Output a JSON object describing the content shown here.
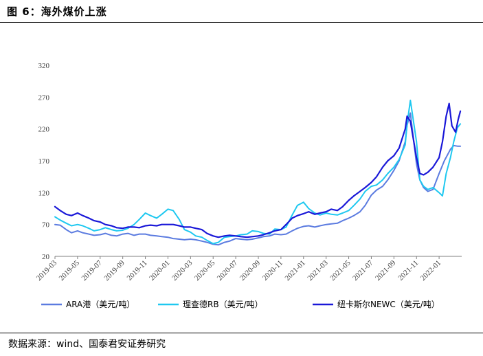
{
  "header": {
    "figure_title": "图 6：海外煤价上涨"
  },
  "footer": {
    "source": "数据来源：wind、国泰君安证券研究"
  },
  "chart_data": {
    "type": "line",
    "title": "图 6：海外煤价上涨",
    "xlabel": "",
    "ylabel": "",
    "ylim": [
      20,
      320
    ],
    "yticks": [
      20,
      70,
      120,
      170,
      220,
      270,
      320
    ],
    "xlim": [
      "2019-03",
      "2022-03"
    ],
    "xticks": [
      "2019-03",
      "2019-05",
      "2019-07",
      "2019-09",
      "2019-11",
      "2020-01",
      "2020-03",
      "2020-05",
      "2020-07",
      "2020-09",
      "2020-11",
      "2021-01",
      "2021-03",
      "2021-05",
      "2021-07",
      "2021-09",
      "2021-11",
      "2022-01"
    ],
    "grid": false,
    "legend_position": "bottom",
    "series": [
      {
        "name": "ARA港（美元/吨）",
        "color": "#5B7BE0",
        "points": [
          [
            "2019-03-01",
            70
          ],
          [
            "2019-03-15",
            69
          ],
          [
            "2019-04-01",
            62
          ],
          [
            "2019-04-15",
            57
          ],
          [
            "2019-05-01",
            60
          ],
          [
            "2019-05-15",
            57
          ],
          [
            "2019-06-01",
            55
          ],
          [
            "2019-06-15",
            53
          ],
          [
            "2019-07-01",
            54
          ],
          [
            "2019-07-15",
            56
          ],
          [
            "2019-08-01",
            53
          ],
          [
            "2019-08-15",
            52
          ],
          [
            "2019-09-01",
            55
          ],
          [
            "2019-09-15",
            56
          ],
          [
            "2019-10-01",
            53
          ],
          [
            "2019-10-15",
            55
          ],
          [
            "2019-11-01",
            55
          ],
          [
            "2019-11-15",
            53
          ],
          [
            "2019-12-01",
            52
          ],
          [
            "2019-12-15",
            51
          ],
          [
            "2020-01-01",
            50
          ],
          [
            "2020-01-15",
            48
          ],
          [
            "2020-02-01",
            47
          ],
          [
            "2020-02-15",
            46
          ],
          [
            "2020-03-01",
            47
          ],
          [
            "2020-03-15",
            46
          ],
          [
            "2020-04-01",
            44
          ],
          [
            "2020-04-15",
            42
          ],
          [
            "2020-05-01",
            39
          ],
          [
            "2020-05-15",
            38
          ],
          [
            "2020-06-01",
            42
          ],
          [
            "2020-06-15",
            44
          ],
          [
            "2020-07-01",
            48
          ],
          [
            "2020-07-15",
            47
          ],
          [
            "2020-08-01",
            46
          ],
          [
            "2020-08-15",
            47
          ],
          [
            "2020-09-01",
            49
          ],
          [
            "2020-09-15",
            51
          ],
          [
            "2020-10-01",
            52
          ],
          [
            "2020-10-15",
            55
          ],
          [
            "2020-11-01",
            54
          ],
          [
            "2020-11-15",
            55
          ],
          [
            "2020-12-01",
            60
          ],
          [
            "2020-12-15",
            64
          ],
          [
            "2021-01-01",
            67
          ],
          [
            "2021-01-15",
            68
          ],
          [
            "2021-02-01",
            66
          ],
          [
            "2021-02-15",
            68
          ],
          [
            "2021-03-01",
            70
          ],
          [
            "2021-03-15",
            71
          ],
          [
            "2021-04-01",
            72
          ],
          [
            "2021-04-15",
            76
          ],
          [
            "2021-05-01",
            80
          ],
          [
            "2021-05-15",
            84
          ],
          [
            "2021-06-01",
            90
          ],
          [
            "2021-06-15",
            100
          ],
          [
            "2021-07-01",
            116
          ],
          [
            "2021-07-15",
            124
          ],
          [
            "2021-08-01",
            130
          ],
          [
            "2021-08-15",
            140
          ],
          [
            "2021-09-01",
            155
          ],
          [
            "2021-09-15",
            170
          ],
          [
            "2021-10-01",
            200
          ],
          [
            "2021-10-06",
            226
          ],
          [
            "2021-10-15",
            245
          ],
          [
            "2021-11-01",
            165
          ],
          [
            "2021-11-10",
            140
          ],
          [
            "2021-11-20",
            128
          ],
          [
            "2021-12-01",
            122
          ],
          [
            "2021-12-15",
            125
          ],
          [
            "2022-01-01",
            150
          ],
          [
            "2022-01-15",
            170
          ],
          [
            "2022-02-01",
            188
          ],
          [
            "2022-02-10",
            194
          ],
          [
            "2022-02-20",
            193
          ],
          [
            "2022-02-28",
            193
          ]
        ]
      },
      {
        "name": "理查德RB（美元/吨）",
        "color": "#1FC8F0",
        "points": [
          [
            "2019-03-01",
            82
          ],
          [
            "2019-03-15",
            77
          ],
          [
            "2019-04-01",
            72
          ],
          [
            "2019-04-15",
            68
          ],
          [
            "2019-05-01",
            70
          ],
          [
            "2019-05-15",
            68
          ],
          [
            "2019-06-01",
            64
          ],
          [
            "2019-06-15",
            60
          ],
          [
            "2019-07-01",
            62
          ],
          [
            "2019-07-15",
            65
          ],
          [
            "2019-08-01",
            62
          ],
          [
            "2019-08-15",
            60
          ],
          [
            "2019-09-01",
            61
          ],
          [
            "2019-09-15",
            64
          ],
          [
            "2019-10-01",
            70
          ],
          [
            "2019-10-15",
            78
          ],
          [
            "2019-11-01",
            88
          ],
          [
            "2019-11-15",
            84
          ],
          [
            "2019-12-01",
            80
          ],
          [
            "2019-12-15",
            86
          ],
          [
            "2020-01-01",
            94
          ],
          [
            "2020-01-15",
            92
          ],
          [
            "2020-02-01",
            78
          ],
          [
            "2020-02-15",
            62
          ],
          [
            "2020-03-01",
            58
          ],
          [
            "2020-03-15",
            52
          ],
          [
            "2020-04-01",
            50
          ],
          [
            "2020-04-15",
            45
          ],
          [
            "2020-05-01",
            40
          ],
          [
            "2020-05-15",
            42
          ],
          [
            "2020-06-01",
            50
          ],
          [
            "2020-06-15",
            51
          ],
          [
            "2020-07-01",
            52
          ],
          [
            "2020-07-15",
            54
          ],
          [
            "2020-08-01",
            55
          ],
          [
            "2020-08-15",
            60
          ],
          [
            "2020-09-01",
            59
          ],
          [
            "2020-09-15",
            56
          ],
          [
            "2020-10-01",
            55
          ],
          [
            "2020-10-15",
            63
          ],
          [
            "2020-11-01",
            62
          ],
          [
            "2020-11-15",
            66
          ],
          [
            "2020-12-01",
            85
          ],
          [
            "2020-12-15",
            100
          ],
          [
            "2021-01-01",
            105
          ],
          [
            "2021-01-15",
            95
          ],
          [
            "2021-02-01",
            88
          ],
          [
            "2021-02-15",
            85
          ],
          [
            "2021-03-01",
            88
          ],
          [
            "2021-03-15",
            86
          ],
          [
            "2021-04-01",
            85
          ],
          [
            "2021-04-15",
            88
          ],
          [
            "2021-05-01",
            92
          ],
          [
            "2021-05-15",
            100
          ],
          [
            "2021-06-01",
            110
          ],
          [
            "2021-06-15",
            122
          ],
          [
            "2021-07-01",
            130
          ],
          [
            "2021-07-15",
            132
          ],
          [
            "2021-08-01",
            140
          ],
          [
            "2021-08-15",
            150
          ],
          [
            "2021-09-01",
            160
          ],
          [
            "2021-09-15",
            172
          ],
          [
            "2021-10-01",
            195
          ],
          [
            "2021-10-06",
            228
          ],
          [
            "2021-10-15",
            265
          ],
          [
            "2021-11-01",
            200
          ],
          [
            "2021-11-10",
            140
          ],
          [
            "2021-11-20",
            130
          ],
          [
            "2021-12-01",
            125
          ],
          [
            "2021-12-15",
            128
          ],
          [
            "2022-01-01",
            120
          ],
          [
            "2022-01-10",
            115
          ],
          [
            "2022-01-20",
            150
          ],
          [
            "2022-02-01",
            175
          ],
          [
            "2022-02-10",
            200
          ],
          [
            "2022-02-20",
            222
          ],
          [
            "2022-02-28",
            228
          ]
        ]
      },
      {
        "name": "纽卡斯尔NEWC（美元/吨）",
        "color": "#1A18D8",
        "points": [
          [
            "2019-03-01",
            98
          ],
          [
            "2019-03-15",
            92
          ],
          [
            "2019-04-01",
            86
          ],
          [
            "2019-04-15",
            84
          ],
          [
            "2019-05-01",
            88
          ],
          [
            "2019-05-15",
            84
          ],
          [
            "2019-06-01",
            80
          ],
          [
            "2019-06-15",
            76
          ],
          [
            "2019-07-01",
            74
          ],
          [
            "2019-07-15",
            70
          ],
          [
            "2019-08-01",
            68
          ],
          [
            "2019-08-15",
            65
          ],
          [
            "2019-09-01",
            64
          ],
          [
            "2019-09-15",
            66
          ],
          [
            "2019-10-01",
            66
          ],
          [
            "2019-10-15",
            65
          ],
          [
            "2019-11-01",
            68
          ],
          [
            "2019-11-15",
            69
          ],
          [
            "2019-12-01",
            68
          ],
          [
            "2019-12-15",
            70
          ],
          [
            "2020-01-01",
            70
          ],
          [
            "2020-01-15",
            70
          ],
          [
            "2020-02-01",
            68
          ],
          [
            "2020-02-15",
            66
          ],
          [
            "2020-03-01",
            66
          ],
          [
            "2020-03-15",
            64
          ],
          [
            "2020-04-01",
            62
          ],
          [
            "2020-04-15",
            56
          ],
          [
            "2020-05-01",
            52
          ],
          [
            "2020-05-15",
            50
          ],
          [
            "2020-06-01",
            52
          ],
          [
            "2020-06-15",
            53
          ],
          [
            "2020-07-01",
            52
          ],
          [
            "2020-07-15",
            51
          ],
          [
            "2020-08-01",
            50
          ],
          [
            "2020-08-15",
            51
          ],
          [
            "2020-09-01",
            52
          ],
          [
            "2020-09-15",
            54
          ],
          [
            "2020-10-01",
            57
          ],
          [
            "2020-10-15",
            60
          ],
          [
            "2020-11-01",
            62
          ],
          [
            "2020-11-15",
            70
          ],
          [
            "2020-12-01",
            80
          ],
          [
            "2020-12-15",
            84
          ],
          [
            "2021-01-01",
            87
          ],
          [
            "2021-01-15",
            90
          ],
          [
            "2021-02-01",
            86
          ],
          [
            "2021-02-15",
            88
          ],
          [
            "2021-03-01",
            90
          ],
          [
            "2021-03-15",
            94
          ],
          [
            "2021-04-01",
            92
          ],
          [
            "2021-04-15",
            98
          ],
          [
            "2021-05-01",
            108
          ],
          [
            "2021-05-15",
            115
          ],
          [
            "2021-06-01",
            122
          ],
          [
            "2021-06-15",
            128
          ],
          [
            "2021-07-01",
            136
          ],
          [
            "2021-07-15",
            145
          ],
          [
            "2021-08-01",
            160
          ],
          [
            "2021-08-15",
            170
          ],
          [
            "2021-09-01",
            178
          ],
          [
            "2021-09-15",
            190
          ],
          [
            "2021-10-01",
            220
          ],
          [
            "2021-10-06",
            240
          ],
          [
            "2021-10-15",
            232
          ],
          [
            "2021-11-01",
            175
          ],
          [
            "2021-11-10",
            150
          ],
          [
            "2021-11-20",
            148
          ],
          [
            "2021-12-01",
            152
          ],
          [
            "2021-12-15",
            160
          ],
          [
            "2022-01-01",
            175
          ],
          [
            "2022-01-10",
            200
          ],
          [
            "2022-01-20",
            240
          ],
          [
            "2022-01-28",
            260
          ],
          [
            "2022-02-05",
            225
          ],
          [
            "2022-02-15",
            215
          ],
          [
            "2022-02-22",
            235
          ],
          [
            "2022-02-28",
            248
          ]
        ]
      }
    ]
  }
}
